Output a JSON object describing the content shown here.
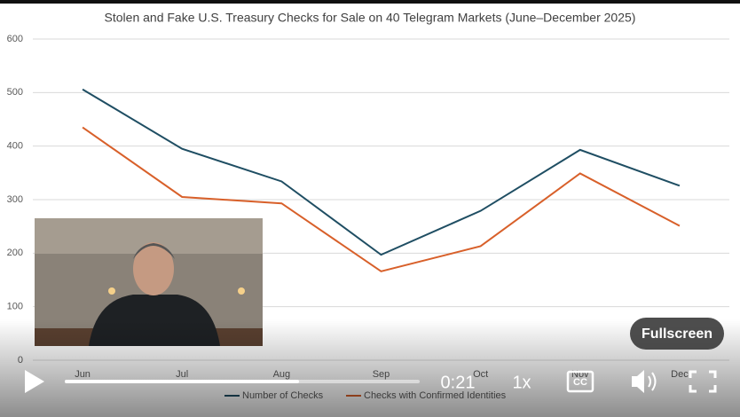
{
  "chart_data": {
    "type": "line",
    "title": "Stolen and Fake U.S. Treasury Checks for Sale on 40 Telegram Markets (June–December 2025)",
    "categories": [
      "Jun",
      "Jul",
      "Aug",
      "Sep",
      "Oct",
      "Nov",
      "Dec"
    ],
    "series": [
      {
        "name": "Number of Checks",
        "color": "#1f4e63",
        "values": [
          506,
          395,
          334,
          197,
          279,
          393,
          326
        ]
      },
      {
        "name": "Checks with Confirmed Identities",
        "color": "#d8602a",
        "values": [
          435,
          305,
          293,
          166,
          213,
          349,
          251
        ]
      }
    ],
    "ylim": [
      0,
      600
    ],
    "yticks": [
      0,
      100,
      200,
      300,
      400,
      500,
      600
    ],
    "grid": true,
    "legend": "bottom"
  },
  "player": {
    "time": "0:21",
    "speed": "1x",
    "captions": "CC",
    "tooltip": "Fullscreen"
  }
}
